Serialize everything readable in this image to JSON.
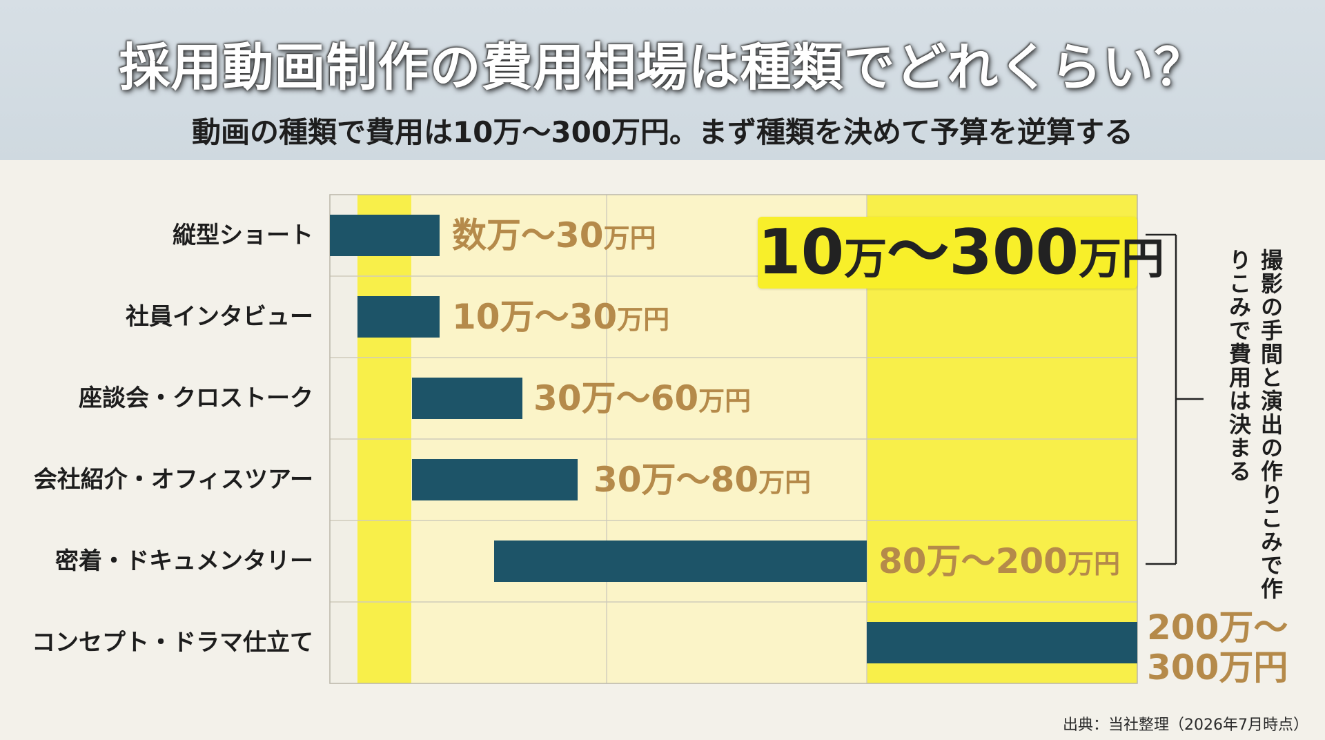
{
  "title": "採用動画制作の費用相場は種類でどれくらい？",
  "subtitle": "動画の種類で費用は10万〜300万円。まず種類を決めて予算を逆算する",
  "highlight": {
    "label_number": "10",
    "label_mid": "万〜300",
    "label_unit": "万円"
  },
  "side_note": "撮影の手間と演出の作りこみで作りこみで費用は決まる",
  "source": "出典：当社整理（2026年7月時点）",
  "colors": {
    "bar": "#1d5468",
    "band_yellow": "#f8ef4a",
    "band_cream": "#fbf4c8",
    "range_text": "#b58a4a"
  },
  "chart_data": {
    "type": "bar",
    "orientation": "horizontal-range",
    "categories": [
      "縦型ショート",
      "社員インタビュー",
      "座談会・クロストーク",
      "会社紹介・オフィスツアー",
      "密着・ドキュメンタリー",
      "コンセプト・ドラマ仕立て"
    ],
    "range_labels": [
      [
        "数万〜30",
        "万円"
      ],
      [
        "10万〜30",
        "万円"
      ],
      [
        "30万〜60",
        "万円"
      ],
      [
        "30万〜80",
        "万円"
      ],
      [
        "80万〜200",
        "万円"
      ],
      [
        "200万〜",
        "300万円"
      ]
    ],
    "ranges_man_yen": [
      [
        0,
        30
      ],
      [
        10,
        30
      ],
      [
        30,
        60
      ],
      [
        30,
        80
      ],
      [
        80,
        200
      ],
      [
        200,
        300
      ]
    ],
    "xlim": [
      0,
      300
    ],
    "highlight_band_man_yen": [
      10,
      30
    ],
    "highlight_band_high_man_yen": [
      200,
      300
    ],
    "ticks_man_yen": [
      100
    ]
  }
}
